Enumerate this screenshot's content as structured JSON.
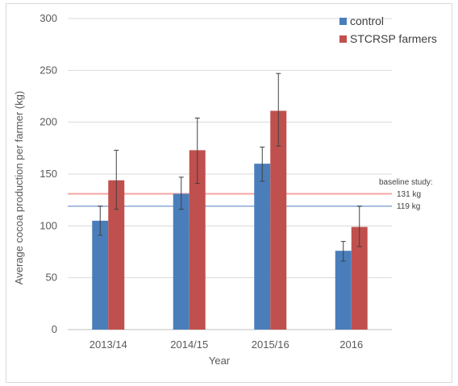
{
  "chart_data": {
    "type": "bar",
    "title": "",
    "xlabel": "Year",
    "ylabel": "Average cocoa production per farmer (kg)",
    "categories": [
      "2013/14",
      "2014/15",
      "2015/16",
      "2016"
    ],
    "ylim": [
      0,
      300
    ],
    "yticks": [
      0,
      50,
      100,
      150,
      200,
      250,
      300
    ],
    "grid": true,
    "legend_position": "top-right",
    "series": [
      {
        "name": "control",
        "color": "#4a7ebb",
        "values": [
          105,
          131,
          160,
          76
        ],
        "err_low": [
          91,
          116,
          143,
          66
        ],
        "err_high": [
          119,
          147,
          176,
          85
        ]
      },
      {
        "name": "STCRSP farmers",
        "color": "#c0504d",
        "values": [
          144,
          173,
          211,
          99
        ],
        "err_low": [
          116,
          141,
          177,
          80
        ],
        "err_high": [
          173,
          204,
          247,
          119
        ]
      }
    ],
    "reference_lines": [
      {
        "label": "131 kg",
        "value": 131,
        "color": "#f4a6a3"
      },
      {
        "label": "119 kg",
        "value": 119,
        "color": "#a6bcde"
      }
    ],
    "annotation_title": "baseline study:"
  }
}
